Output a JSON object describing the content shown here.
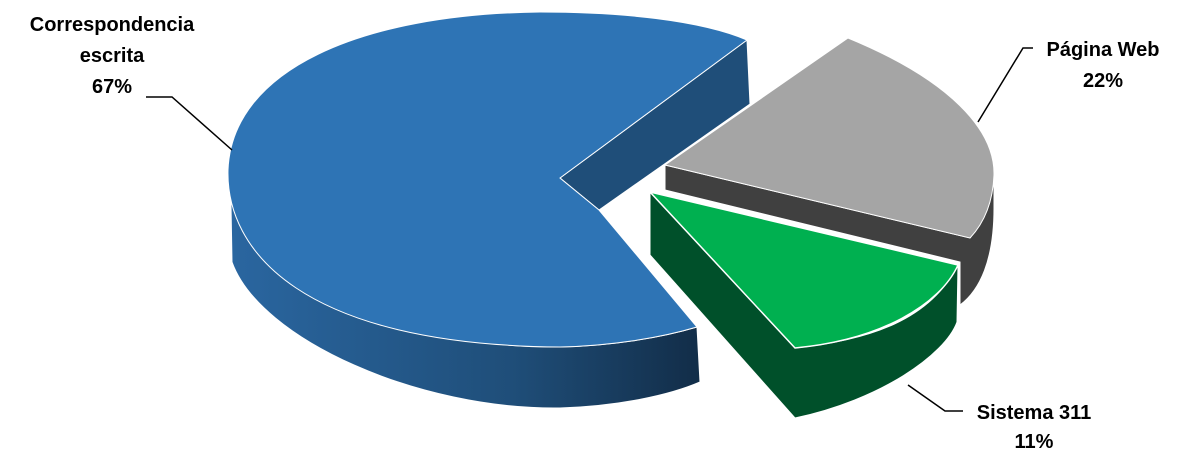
{
  "chart_data": {
    "type": "pie",
    "style": "3d-exploded",
    "title": "",
    "slices": [
      {
        "label_line1": "Correspondencia",
        "label_line2": "escrita",
        "percent_label": "67%",
        "value": 67,
        "color": "#2E74B5",
        "side_color": "#1F4E79"
      },
      {
        "label_line1": "Página Web",
        "label_line2": "",
        "percent_label": "22%",
        "value": 22,
        "color": "#A5A5A5",
        "side_color": "#404040"
      },
      {
        "label_line1": "Sistema 311",
        "label_line2": "",
        "percent_label": "11%",
        "value": 11,
        "color": "#00B050",
        "side_color": "#00502A"
      }
    ]
  }
}
